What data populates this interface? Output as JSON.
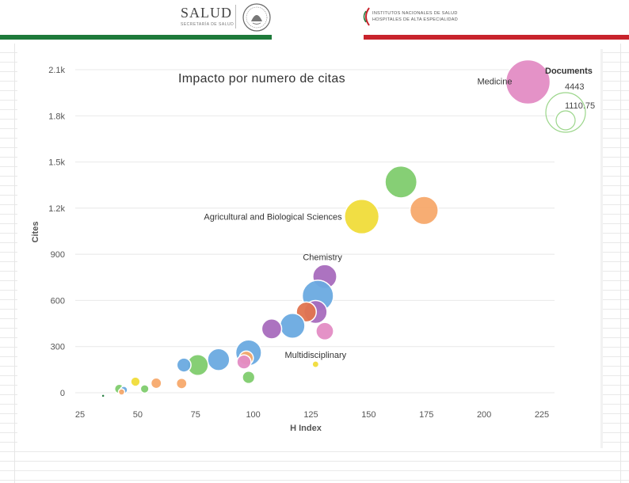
{
  "header": {
    "salud_label": "SALUD",
    "salud_sub": "SECRETARÍA DE SALUD",
    "inst_line1": "INSTITUTOS NACIONALES DE SALUD",
    "inst_line2": "HOSPITALES DE ALTA ESPECIALIDAD",
    "green": "#1e7a3a",
    "red": "#c8232c"
  },
  "slide_title": "Impacto por numero de citas",
  "chart_data": {
    "type": "scatter",
    "title": "",
    "xlabel": "H Index",
    "ylabel": "Cites",
    "xlim": [
      25,
      250
    ],
    "ylim": [
      0,
      2100
    ],
    "xticks": [
      25,
      50,
      75,
      100,
      125,
      150,
      175,
      200,
      225
    ],
    "yticks": [
      0,
      300,
      600,
      900,
      1200,
      1500,
      1800,
      2100
    ],
    "xtick_labels": [
      "25",
      "50",
      "75",
      "100",
      "125",
      "150",
      "175",
      "200",
      "225"
    ],
    "ytick_labels": [
      "0",
      "300",
      "600",
      "900",
      "1.2k",
      "1.5k",
      "1.8k",
      "2.1k"
    ],
    "grid": true,
    "bubble_legend": {
      "title": "Documents",
      "large": "4443",
      "small": "1110.75"
    },
    "annotations": [
      {
        "text": "Medicine",
        "x": 219,
        "y": 2015
      },
      {
        "text": "Agricultural and Biological Sciences",
        "x": 147,
        "y": 1145
      },
      {
        "text": "Chemistry",
        "x": 130,
        "y": 760
      },
      {
        "text": "Multidisciplinary",
        "x": 127,
        "y": 185
      }
    ],
    "points": [
      {
        "label": "Medicine",
        "x": 219,
        "y": 2020,
        "size": 4443,
        "color": "#e38cc4"
      },
      {
        "label": "",
        "x": 164,
        "y": 1370,
        "size": 2300,
        "color": "#7fcc6e"
      },
      {
        "label": "Agricultural and Biological Sciences",
        "x": 147,
        "y": 1145,
        "size": 2700,
        "color": "#f0dc3a"
      },
      {
        "label": "",
        "x": 174,
        "y": 1185,
        "size": 1800,
        "color": "#f7a96b"
      },
      {
        "label": "Chemistry",
        "x": 131,
        "y": 755,
        "size": 1300,
        "color": "#a86bbd"
      },
      {
        "label": "",
        "x": 128,
        "y": 630,
        "size": 2200,
        "color": "#6aaae0"
      },
      {
        "label": "",
        "x": 127,
        "y": 525,
        "size": 1200,
        "color": "#a86bbd"
      },
      {
        "label": "",
        "x": 123,
        "y": 525,
        "size": 900,
        "color": "#e0744f"
      },
      {
        "label": "",
        "x": 117,
        "y": 435,
        "size": 1400,
        "color": "#6aaae0"
      },
      {
        "label": "",
        "x": 108,
        "y": 415,
        "size": 900,
        "color": "#a86bbd"
      },
      {
        "label": "",
        "x": 131,
        "y": 400,
        "size": 700,
        "color": "#e38cc4"
      },
      {
        "label": "",
        "x": 98,
        "y": 260,
        "size": 1500,
        "color": "#6aaae0"
      },
      {
        "label": "",
        "x": 85,
        "y": 215,
        "size": 1100,
        "color": "#6aaae0"
      },
      {
        "label": "",
        "x": 76,
        "y": 180,
        "size": 1000,
        "color": "#7fcc6e"
      },
      {
        "label": "",
        "x": 70,
        "y": 180,
        "size": 450,
        "color": "#6aaae0"
      },
      {
        "label": "",
        "x": 97,
        "y": 225,
        "size": 450,
        "color": "#f7a96b"
      },
      {
        "label": "",
        "x": 96,
        "y": 200,
        "size": 450,
        "color": "#e38cc4"
      },
      {
        "label": "Multidisciplinary",
        "x": 127,
        "y": 185,
        "size": 100,
        "color": "#f0dc3a"
      },
      {
        "label": "",
        "x": 98,
        "y": 100,
        "size": 350,
        "color": "#7fcc6e"
      },
      {
        "label": "",
        "x": 69,
        "y": 60,
        "size": 250,
        "color": "#f7a96b"
      },
      {
        "label": "",
        "x": 58,
        "y": 62,
        "size": 250,
        "color": "#f7a96b"
      },
      {
        "label": "",
        "x": 49,
        "y": 72,
        "size": 200,
        "color": "#f0dc3a"
      },
      {
        "label": "",
        "x": 53,
        "y": 25,
        "size": 160,
        "color": "#7fcc6e"
      },
      {
        "label": "",
        "x": 42,
        "y": 25,
        "size": 200,
        "color": "#7fcc6e"
      },
      {
        "label": "",
        "x": 44,
        "y": 18,
        "size": 120,
        "color": "#6aaae0"
      },
      {
        "label": "",
        "x": 43,
        "y": 5,
        "size": 90,
        "color": "#f7a96b"
      },
      {
        "label": "",
        "x": 35,
        "y": -20,
        "size": 20,
        "color": "#1e7a3a"
      }
    ]
  }
}
